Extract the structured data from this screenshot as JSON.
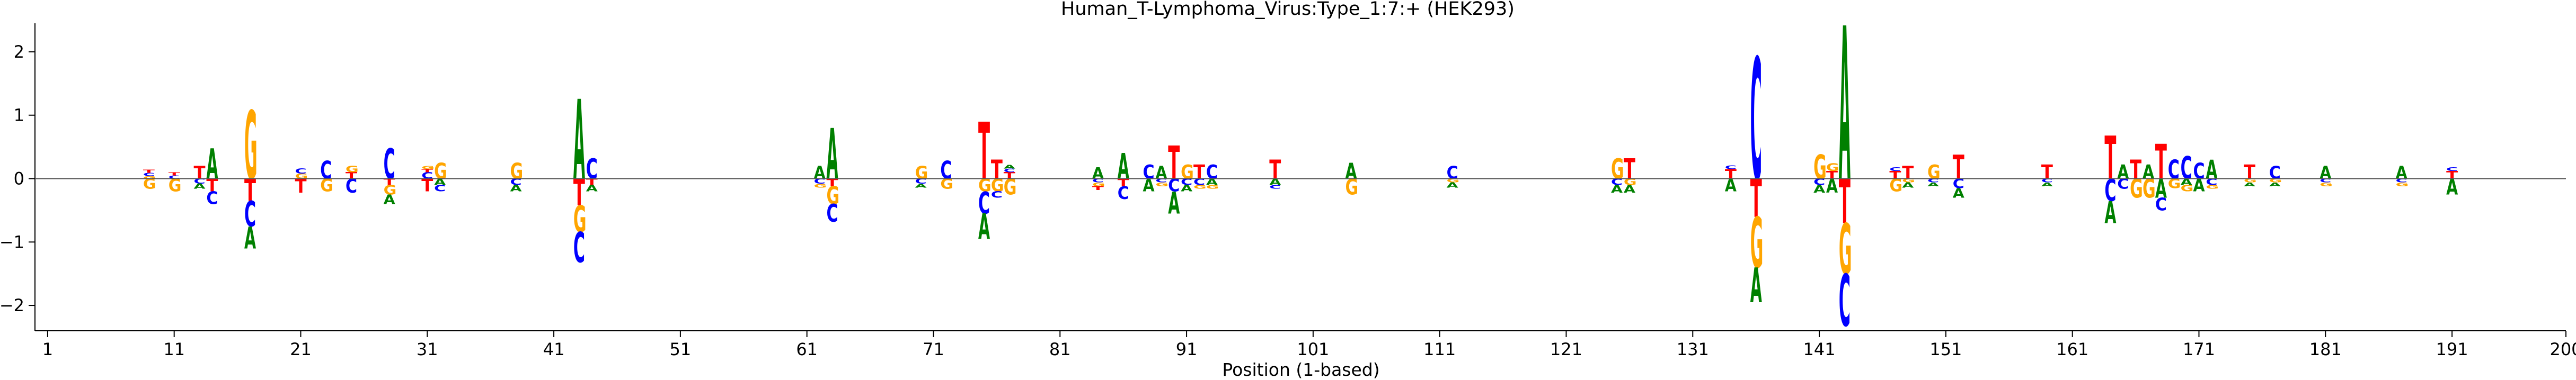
{
  "chart_data": {
    "type": "sequence-logo",
    "title": "Human_T-Lymphoma_Virus:Type_1:7:+  (HEK293)",
    "xlabel": "Position (1-based)",
    "ylabel": "",
    "xlim": [
      0,
      200
    ],
    "ylim": [
      -2.4,
      2.45
    ],
    "x_ticks": [
      1,
      11,
      21,
      31,
      41,
      51,
      61,
      71,
      81,
      91,
      101,
      111,
      121,
      131,
      141,
      151,
      161,
      171,
      181,
      191,
      200
    ],
    "y_ticks": [
      -2,
      -1,
      0,
      1,
      2
    ],
    "zero_line": true,
    "grid": false,
    "colors": {
      "A": "#008000",
      "C": "#0000ff",
      "G": "#ffa500",
      "T": "#ff0000"
    },
    "positions": [
      {
        "pos": 9,
        "up": [
          [
            "G",
            0.04
          ],
          [
            "C",
            0.05
          ],
          [
            "T",
            0.05
          ]
        ],
        "down": [
          [
            "G",
            0.16
          ]
        ]
      },
      {
        "pos": 11,
        "up": [
          [
            "C",
            0.05
          ],
          [
            "T",
            0.05
          ]
        ],
        "down": [
          [
            "G",
            0.2
          ]
        ]
      },
      {
        "pos": 13,
        "up": [
          [
            "T",
            0.2
          ]
        ],
        "down": [
          [
            "C",
            0.08
          ],
          [
            "A",
            0.08
          ]
        ]
      },
      {
        "pos": 14,
        "up": [
          [
            "A",
            0.48
          ]
        ],
        "down": [
          [
            "T",
            0.2
          ],
          [
            "C",
            0.2
          ]
        ]
      },
      {
        "pos": 17,
        "up": [
          [
            "G",
            1.08
          ]
        ],
        "down": [
          [
            "T",
            0.35
          ],
          [
            "C",
            0.4
          ],
          [
            "A",
            0.35
          ]
        ]
      },
      {
        "pos": 21,
        "up": [
          [
            "G",
            0.08
          ],
          [
            "C",
            0.08
          ]
        ],
        "down": [
          [
            "T",
            0.22
          ]
        ]
      },
      {
        "pos": 23,
        "up": [
          [
            "C",
            0.28
          ]
        ],
        "down": [
          [
            "G",
            0.2
          ]
        ]
      },
      {
        "pos": 25,
        "up": [
          [
            "T",
            0.1
          ],
          [
            "G",
            0.1
          ]
        ],
        "down": [
          [
            "C",
            0.22
          ]
        ]
      },
      {
        "pos": 28,
        "up": [
          [
            "C",
            0.48
          ]
        ],
        "down": [
          [
            "T",
            0.1
          ],
          [
            "G",
            0.15
          ],
          [
            "A",
            0.15
          ]
        ]
      },
      {
        "pos": 31,
        "up": [
          [
            "C",
            0.1
          ],
          [
            "T",
            0.05
          ],
          [
            "G",
            0.05
          ]
        ],
        "down": [
          [
            "T",
            0.2
          ]
        ]
      },
      {
        "pos": 32,
        "up": [
          [
            "G",
            0.25
          ]
        ],
        "down": [
          [
            "A",
            0.1
          ],
          [
            "C",
            0.1
          ]
        ]
      },
      {
        "pos": 38,
        "up": [
          [
            "G",
            0.25
          ]
        ],
        "down": [
          [
            "C",
            0.1
          ],
          [
            "A",
            0.1
          ]
        ]
      },
      {
        "pos": 43,
        "up": [
          [
            "A",
            1.26
          ]
        ],
        "down": [
          [
            "T",
            0.42
          ],
          [
            "G",
            0.42
          ],
          [
            "C",
            0.48
          ]
        ]
      },
      {
        "pos": 44,
        "up": [
          [
            "C",
            0.32
          ]
        ],
        "down": [
          [
            "T",
            0.1
          ],
          [
            "A",
            0.1
          ]
        ]
      },
      {
        "pos": 62,
        "up": [
          [
            "A",
            0.2
          ]
        ],
        "down": [
          [
            "C",
            0.08
          ],
          [
            "G",
            0.06
          ]
        ]
      },
      {
        "pos": 63,
        "up": [
          [
            "A",
            0.8
          ]
        ],
        "down": [
          [
            "T",
            0.12
          ],
          [
            "G",
            0.28
          ],
          [
            "C",
            0.28
          ]
        ]
      },
      {
        "pos": 70,
        "up": [
          [
            "G",
            0.2
          ]
        ],
        "down": [
          [
            "C",
            0.08
          ],
          [
            "A",
            0.06
          ]
        ]
      },
      {
        "pos": 72,
        "up": [
          [
            "C",
            0.28
          ]
        ],
        "down": [
          [
            "G",
            0.16
          ]
        ]
      },
      {
        "pos": 75,
        "up": [
          [
            "T",
            0.9
          ]
        ],
        "down": [
          [
            "G",
            0.2
          ],
          [
            "C",
            0.35
          ],
          [
            "A",
            0.4
          ]
        ]
      },
      {
        "pos": 76,
        "up": [
          [
            "T",
            0.3
          ]
        ],
        "down": [
          [
            "G",
            0.2
          ],
          [
            "C",
            0.1
          ]
        ]
      },
      {
        "pos": 77,
        "up": [
          [
            "T",
            0.1
          ],
          [
            "C",
            0.06
          ],
          [
            "A",
            0.06
          ]
        ],
        "down": [
          [
            "G",
            0.25
          ]
        ]
      },
      {
        "pos": 84,
        "up": [
          [
            "A",
            0.18
          ]
        ],
        "down": [
          [
            "C",
            0.06
          ],
          [
            "G",
            0.06
          ],
          [
            "T",
            0.06
          ]
        ]
      },
      {
        "pos": 86,
        "up": [
          [
            "A",
            0.4
          ]
        ],
        "down": [
          [
            "T",
            0.12
          ],
          [
            "C",
            0.2
          ]
        ]
      },
      {
        "pos": 88,
        "up": [
          [
            "C",
            0.22
          ]
        ],
        "down": [
          [
            "A",
            0.2
          ]
        ]
      },
      {
        "pos": 89,
        "up": [
          [
            "A",
            0.2
          ]
        ],
        "down": [
          [
            "C",
            0.06
          ],
          [
            "G",
            0.06
          ]
        ]
      },
      {
        "pos": 90,
        "up": [
          [
            "T",
            0.52
          ]
        ],
        "down": [
          [
            "C",
            0.2
          ],
          [
            "A",
            0.35
          ]
        ]
      },
      {
        "pos": 91,
        "up": [
          [
            "G",
            0.22
          ]
        ],
        "down": [
          [
            "C",
            0.1
          ],
          [
            "A",
            0.1
          ]
        ]
      },
      {
        "pos": 92,
        "up": [
          [
            "T",
            0.22
          ]
        ],
        "down": [
          [
            "C",
            0.1
          ],
          [
            "G",
            0.06
          ]
        ]
      },
      {
        "pos": 93,
        "up": [
          [
            "C",
            0.22
          ]
        ],
        "down": [
          [
            "A",
            0.1
          ],
          [
            "G",
            0.06
          ]
        ]
      },
      {
        "pos": 98,
        "up": [
          [
            "T",
            0.3
          ]
        ],
        "down": [
          [
            "A",
            0.1
          ],
          [
            "C",
            0.06
          ]
        ]
      },
      {
        "pos": 104,
        "up": [
          [
            "A",
            0.25
          ]
        ],
        "down": [
          [
            "G",
            0.25
          ]
        ]
      },
      {
        "pos": 112,
        "up": [
          [
            "C",
            0.2
          ]
        ],
        "down": [
          [
            "G",
            0.06
          ],
          [
            "A",
            0.08
          ]
        ]
      },
      {
        "pos": 125,
        "up": [
          [
            "G",
            0.32
          ]
        ],
        "down": [
          [
            "C",
            0.1
          ],
          [
            "A",
            0.12
          ]
        ]
      },
      {
        "pos": 126,
        "up": [
          [
            "T",
            0.32
          ]
        ],
        "down": [
          [
            "G",
            0.1
          ],
          [
            "A",
            0.12
          ]
        ]
      },
      {
        "pos": 134,
        "up": [
          [
            "T",
            0.15
          ],
          [
            "C",
            0.06
          ]
        ],
        "down": [
          [
            "A",
            0.2
          ]
        ]
      },
      {
        "pos": 136,
        "up": [
          [
            "C",
            1.92
          ]
        ],
        "down": [
          [
            "T",
            0.6
          ],
          [
            "G",
            0.8
          ],
          [
            "A",
            0.55
          ]
        ]
      },
      {
        "pos": 141,
        "up": [
          [
            "G",
            0.38
          ]
        ],
        "down": [
          [
            "C",
            0.1
          ],
          [
            "A",
            0.12
          ]
        ]
      },
      {
        "pos": 142,
        "up": [
          [
            "T",
            0.12
          ],
          [
            "G",
            0.12
          ]
        ],
        "down": [
          [
            "A",
            0.22
          ]
        ]
      },
      {
        "pos": 143,
        "up": [
          [
            "A",
            2.42
          ]
        ],
        "down": [
          [
            "T",
            0.7
          ],
          [
            "G",
            0.8
          ],
          [
            "C",
            0.82
          ]
        ]
      },
      {
        "pos": 147,
        "up": [
          [
            "T",
            0.12
          ],
          [
            "C",
            0.06
          ]
        ],
        "down": [
          [
            "G",
            0.2
          ]
        ]
      },
      {
        "pos": 148,
        "up": [
          [
            "T",
            0.2
          ]
        ],
        "down": [
          [
            "G",
            0.06
          ],
          [
            "A",
            0.08
          ]
        ]
      },
      {
        "pos": 150,
        "up": [
          [
            "G",
            0.22
          ]
        ],
        "down": [
          [
            "C",
            0.06
          ],
          [
            "A",
            0.06
          ]
        ]
      },
      {
        "pos": 152,
        "up": [
          [
            "T",
            0.38
          ]
        ],
        "down": [
          [
            "C",
            0.15
          ],
          [
            "A",
            0.15
          ]
        ]
      },
      {
        "pos": 159,
        "up": [
          [
            "T",
            0.22
          ]
        ],
        "down": [
          [
            "C",
            0.06
          ],
          [
            "A",
            0.06
          ]
        ]
      },
      {
        "pos": 164,
        "up": [
          [
            "T",
            0.68
          ]
        ],
        "down": [
          [
            "C",
            0.35
          ],
          [
            "A",
            0.35
          ]
        ]
      },
      {
        "pos": 165,
        "up": [
          [
            "A",
            0.22
          ]
        ],
        "down": [
          [
            "C",
            0.16
          ]
        ]
      },
      {
        "pos": 166,
        "up": [
          [
            "T",
            0.3
          ]
        ],
        "down": [
          [
            "G",
            0.3
          ]
        ]
      },
      {
        "pos": 167,
        "up": [
          [
            "A",
            0.22
          ]
        ],
        "down": [
          [
            "G",
            0.3
          ]
        ]
      },
      {
        "pos": 168,
        "up": [
          [
            "T",
            0.55
          ]
        ],
        "down": [
          [
            "A",
            0.3
          ],
          [
            "C",
            0.2
          ]
        ]
      },
      {
        "pos": 169,
        "up": [
          [
            "C",
            0.3
          ]
        ],
        "down": [
          [
            "G",
            0.15
          ]
        ]
      },
      {
        "pos": 170,
        "up": [
          [
            "C",
            0.36
          ]
        ],
        "down": [
          [
            "A",
            0.1
          ],
          [
            "G",
            0.1
          ]
        ]
      },
      {
        "pos": 171,
        "up": [
          [
            "C",
            0.25
          ]
        ],
        "down": [
          [
            "A",
            0.2
          ]
        ]
      },
      {
        "pos": 172,
        "up": [
          [
            "A",
            0.3
          ]
        ],
        "down": [
          [
            "C",
            0.1
          ],
          [
            "G",
            0.06
          ]
        ]
      },
      {
        "pos": 175,
        "up": [
          [
            "T",
            0.22
          ]
        ],
        "down": [
          [
            "G",
            0.06
          ],
          [
            "A",
            0.06
          ]
        ]
      },
      {
        "pos": 177,
        "up": [
          [
            "C",
            0.2
          ]
        ],
        "down": [
          [
            "G",
            0.06
          ],
          [
            "A",
            0.06
          ]
        ]
      },
      {
        "pos": 181,
        "up": [
          [
            "A",
            0.2
          ]
        ],
        "down": [
          [
            "C",
            0.06
          ],
          [
            "G",
            0.06
          ]
        ]
      },
      {
        "pos": 187,
        "up": [
          [
            "A",
            0.2
          ]
        ],
        "down": [
          [
            "C",
            0.06
          ],
          [
            "G",
            0.06
          ]
        ]
      },
      {
        "pos": 191,
        "up": [
          [
            "T",
            0.12
          ],
          [
            "C",
            0.06
          ]
        ],
        "down": [
          [
            "A",
            0.25
          ]
        ]
      }
    ]
  }
}
